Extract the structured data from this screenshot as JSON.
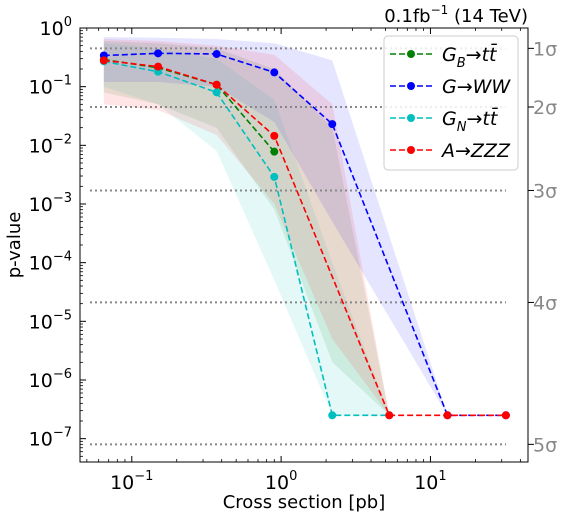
{
  "chart_data": {
    "type": "line",
    "title": "0.1fb$^{-1}$ (14 TeV)",
    "title_text": "0.1fb",
    "title_sup": "−1",
    "title_suffix": " (14 TeV)",
    "xlabel": "Cross section [pb]",
    "ylabel": "p-value",
    "xscale": "log",
    "yscale": "log",
    "xlim": [
      0.045,
      45
    ],
    "ylim": [
      4e-08,
      1
    ],
    "xticks": [
      {
        "value": 0.1,
        "base": "10",
        "exp": "−1"
      },
      {
        "value": 1,
        "base": "10",
        "exp": "0"
      },
      {
        "value": 10,
        "base": "10",
        "exp": "1"
      }
    ],
    "yticks": [
      {
        "value": 1,
        "base": "10",
        "exp": "0"
      },
      {
        "value": 0.1,
        "base": "10",
        "exp": "−1"
      },
      {
        "value": 0.01,
        "base": "10",
        "exp": "−2"
      },
      {
        "value": 0.001,
        "base": "10",
        "exp": "−3"
      },
      {
        "value": 0.0001,
        "base": "10",
        "exp": "−4"
      },
      {
        "value": 1e-05,
        "base": "10",
        "exp": "−5"
      },
      {
        "value": 1e-06,
        "base": "10",
        "exp": "−6"
      },
      {
        "value": 1e-07,
        "base": "10",
        "exp": "−7"
      }
    ],
    "sigma_lines": [
      {
        "label": "1σ",
        "p": 0.45
      },
      {
        "label": "2σ",
        "p": 0.045
      },
      {
        "label": "3σ",
        "p": 0.0017
      },
      {
        "label": "4σ",
        "p": 2.1e-05
      },
      {
        "label": "5σ",
        "p": 8e-08
      }
    ],
    "legend_position": "top-right",
    "grid": false,
    "series": [
      {
        "name": "G_B→tt̄",
        "legend_main": "G",
        "legend_sub": "B",
        "legend_rest": "→tt̄",
        "color": "#008000",
        "x": [
          0.065,
          0.15,
          0.37,
          0.9
        ],
        "y": [
          0.29,
          0.21,
          0.108,
          0.0078
        ],
        "band": {
          "x": [
            0.065,
            0.15,
            0.37,
            0.9,
            2.2,
            5.3
          ],
          "upper": [
            0.6,
            0.55,
            0.45,
            0.2,
            0.02,
            2.5e-07
          ],
          "lower": [
            0.08,
            0.05,
            0.02,
            0.0008,
            2e-06,
            2.5e-07
          ]
        }
      },
      {
        "name": "G→WW",
        "legend_main": "G→WW",
        "legend_sub": "",
        "legend_rest": "",
        "color": "#0000ff",
        "x": [
          0.065,
          0.15,
          0.37,
          0.9,
          2.2,
          13,
          32
        ],
        "y": [
          0.34,
          0.37,
          0.36,
          0.175,
          0.023,
          2.5e-07,
          2.5e-07
        ],
        "band": {
          "x": [
            0.065,
            0.15,
            0.37,
            0.9,
            2.2,
            13
          ],
          "upper": [
            0.7,
            0.68,
            0.65,
            0.55,
            0.28,
            2.5e-07
          ],
          "lower": [
            0.12,
            0.12,
            0.1,
            0.025,
            0.0005,
            2.5e-07
          ]
        }
      },
      {
        "name": "G_N→tt̄",
        "legend_main": "G",
        "legend_sub": "N",
        "legend_rest": "→tt̄",
        "color": "#00bfbf",
        "x": [
          0.065,
          0.15,
          0.37,
          0.9,
          2.2,
          5.3
        ],
        "y": [
          0.27,
          0.18,
          0.08,
          0.0029,
          2.5e-07,
          2.5e-07
        ],
        "band": {
          "x": [
            0.065,
            0.15,
            0.37,
            0.9,
            2.2,
            5.3
          ],
          "upper": [
            0.55,
            0.45,
            0.3,
            0.06,
            0.0001,
            2.5e-07
          ],
          "lower": [
            0.1,
            0.05,
            0.008,
            5e-05,
            2.5e-07,
            2.5e-07
          ]
        }
      },
      {
        "name": "A→ZZZ",
        "legend_main": "A→ZZZ",
        "legend_sub": "",
        "legend_rest": "",
        "color": "#ff0000",
        "x": [
          0.065,
          0.15,
          0.37,
          0.9,
          5.3,
          13,
          32
        ],
        "y": [
          0.28,
          0.22,
          0.108,
          0.0145,
          2.5e-07,
          2.5e-07,
          2.5e-07
        ],
        "band": {
          "x": [
            0.065,
            0.15,
            0.37,
            0.9,
            2.2,
            5.3
          ],
          "upper": [
            0.65,
            0.6,
            0.5,
            0.35,
            0.05,
            2.5e-07
          ],
          "lower": [
            0.05,
            0.04,
            0.015,
            0.001,
            5e-06,
            2.5e-07
          ]
        }
      }
    ]
  }
}
